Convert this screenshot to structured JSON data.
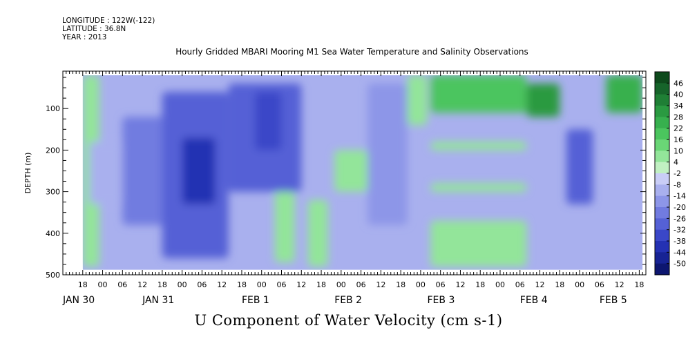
{
  "header": {
    "longitude": "LONGITUDE : 122W(-122)",
    "latitude": "LATITUDE : 36.8N",
    "year": "YEAR : 2013"
  },
  "chart_data": {
    "type": "heatmap",
    "title": "Hourly Gridded MBARI Mooring M1 Sea Water Temperature and Salinity Observations",
    "variable_title": "U Component of Water Velocity (cm s-1)",
    "ylabel": "DEPTH (m)",
    "xlabel": "",
    "ylim": [
      500,
      10
    ],
    "y_reversed": true,
    "y_ticks": [
      100,
      200,
      300,
      400,
      500
    ],
    "x_range_hours": [
      0,
      176
    ],
    "x_data_start_hour": 6,
    "x_data_end_hour": 175,
    "x_tick_hours": [
      6,
      12,
      18,
      24,
      30,
      36,
      42,
      48,
      54,
      60,
      66,
      72,
      78,
      84,
      90,
      96,
      102,
      108,
      114,
      120,
      126,
      132,
      138,
      144,
      150,
      156,
      162,
      168,
      174
    ],
    "x_tick_labels": [
      "18",
      "00",
      "06",
      "12",
      "18",
      "00",
      "06",
      "12",
      "18",
      "00",
      "06",
      "12",
      "18",
      "00",
      "06",
      "12",
      "18",
      "00",
      "06",
      "12",
      "18",
      "00",
      "06",
      "12",
      "18",
      "00",
      "06",
      "12",
      "18"
    ],
    "x_date_labels": [
      {
        "label": "JAN 30",
        "hour": 0
      },
      {
        "label": "JAN 31",
        "hour": 24
      },
      {
        "label": "FEB  1",
        "hour": 54
      },
      {
        "label": "FEB  2",
        "hour": 82
      },
      {
        "label": "FEB  3",
        "hour": 110
      },
      {
        "label": "FEB  4",
        "hour": 138
      },
      {
        "label": "FEB  5",
        "hour": 162
      }
    ],
    "colorbar": {
      "levels": [
        48,
        46,
        40,
        34,
        28,
        22,
        16,
        10,
        4,
        -2,
        -8,
        -14,
        -20,
        -26,
        -32,
        -38,
        -44,
        -50
      ],
      "labels": [
        "46",
        "40",
        "34",
        "28",
        "22",
        "16",
        "10",
        "4",
        "-2",
        "-8",
        "-14",
        "-20",
        "-26",
        "-32",
        "-38",
        "-44",
        "-50"
      ],
      "colors": [
        "#0e4a1c",
        "#16642a",
        "#1f7f35",
        "#2a9a41",
        "#37b04e",
        "#4bc55e",
        "#6ad676",
        "#93e59a",
        "#c1f0c2",
        "#c9cdf6",
        "#a9b0ee",
        "#8d96e8",
        "#717be0",
        "#5561d6",
        "#3a47c8",
        "#2431b3",
        "#172394",
        "#0d1670"
      ]
    },
    "regions": [
      {
        "t0": 6,
        "t1": 11,
        "d0": 20,
        "d1": 480,
        "value": 8
      },
      {
        "t0": 8,
        "t1": 18,
        "d0": 180,
        "d1": 330,
        "value": -10
      },
      {
        "t0": 18,
        "t1": 34,
        "d0": 120,
        "d1": 380,
        "value": -22
      },
      {
        "t0": 30,
        "t1": 50,
        "d0": 60,
        "d1": 460,
        "value": -30
      },
      {
        "t0": 36,
        "t1": 46,
        "d0": 170,
        "d1": 330,
        "value": -38
      },
      {
        "t0": 50,
        "t1": 72,
        "d0": 40,
        "d1": 300,
        "value": -26
      },
      {
        "t0": 58,
        "t1": 66,
        "d0": 60,
        "d1": 200,
        "value": -36
      },
      {
        "t0": 64,
        "t1": 70,
        "d0": 300,
        "d1": 470,
        "value": 6
      },
      {
        "t0": 74,
        "t1": 80,
        "d0": 320,
        "d1": 480,
        "value": 8
      },
      {
        "t0": 82,
        "t1": 92,
        "d0": 200,
        "d1": 300,
        "value": 6
      },
      {
        "t0": 92,
        "t1": 104,
        "d0": 40,
        "d1": 380,
        "value": -14
      },
      {
        "t0": 104,
        "t1": 110,
        "d0": 20,
        "d1": 140,
        "value": 10
      },
      {
        "t0": 111,
        "t1": 140,
        "d0": 20,
        "d1": 110,
        "value": 22
      },
      {
        "t0": 111,
        "t1": 140,
        "d0": 180,
        "d1": 200,
        "value": 8
      },
      {
        "t0": 111,
        "t1": 140,
        "d0": 280,
        "d1": 300,
        "value": 6
      },
      {
        "t0": 111,
        "t1": 140,
        "d0": 370,
        "d1": 480,
        "value": 6
      },
      {
        "t0": 140,
        "t1": 150,
        "d0": 40,
        "d1": 120,
        "value": 34
      },
      {
        "t0": 152,
        "t1": 160,
        "d0": 150,
        "d1": 330,
        "value": -28
      },
      {
        "t0": 164,
        "t1": 175,
        "d0": 20,
        "d1": 110,
        "value": 28
      }
    ]
  }
}
